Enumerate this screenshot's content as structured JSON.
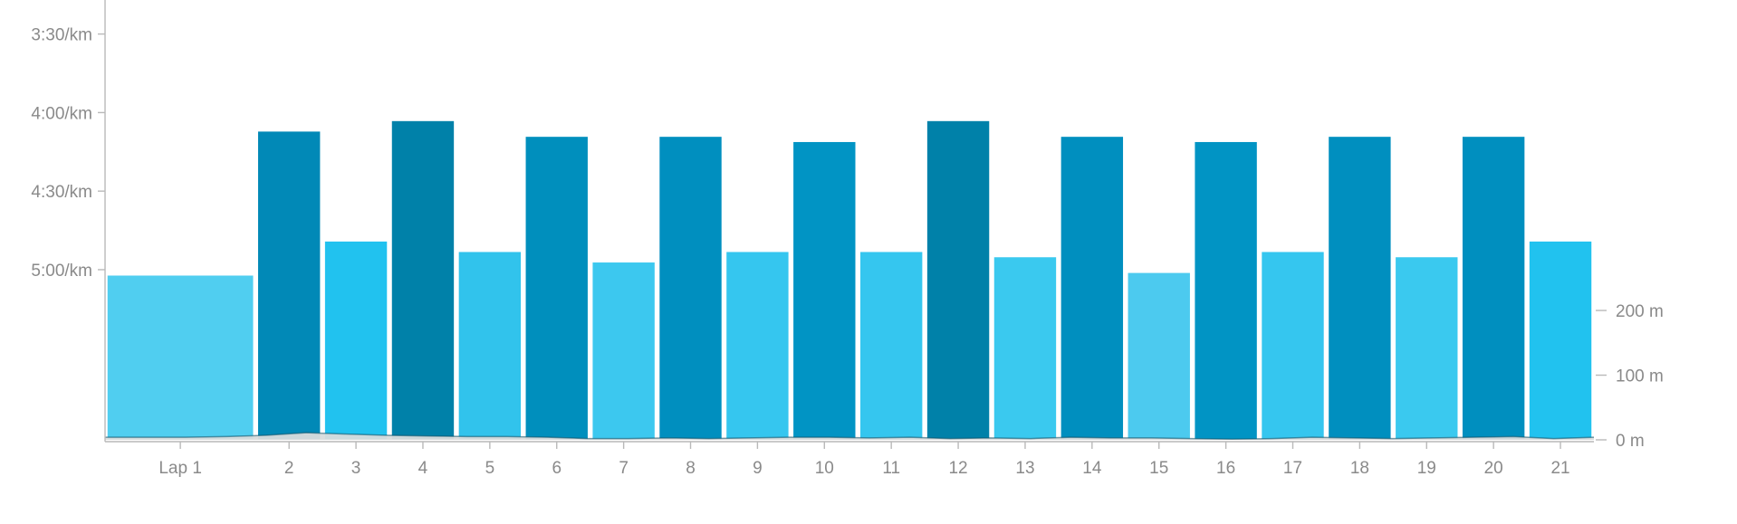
{
  "chart_data": {
    "type": "bar",
    "title": "",
    "xlabel": "",
    "ylabel": "",
    "pace_axis": {
      "ticks": [
        "3:30/km",
        "4:00/km",
        "4:30/km",
        "5:00/km"
      ],
      "tick_values_sec": [
        210,
        240,
        270,
        300
      ],
      "range_sec": [
        197,
        365
      ],
      "inverted": true
    },
    "elevation_axis": {
      "ticks": [
        "200 m",
        "100 m",
        "0 m"
      ],
      "tick_values_m": [
        200,
        100,
        0
      ],
      "range_m": [
        0,
        680
      ]
    },
    "categories": [
      "Lap 1",
      "2",
      "3",
      "4",
      "5",
      "6",
      "7",
      "8",
      "9",
      "10",
      "11",
      "12",
      "13",
      "14",
      "15",
      "16",
      "17",
      "18",
      "19",
      "20",
      "21"
    ],
    "lap_distance_rel": [
      2.25,
      1,
      1,
      1,
      1,
      1,
      1,
      1,
      1,
      1,
      1,
      1,
      1,
      1,
      1,
      1,
      1,
      1,
      1,
      1,
      1
    ],
    "pace_sec_per_km": [
      302,
      247,
      289,
      243,
      293,
      249,
      297,
      249,
      293,
      251,
      293,
      243,
      295,
      249,
      301,
      251,
      293,
      249,
      295,
      249,
      289
    ],
    "pace_labels": [
      "5:02/km",
      "4:07/km",
      "4:49/km",
      "4:03/km",
      "4:53/km",
      "4:09/km",
      "4:57/km",
      "4:09/km",
      "4:53/km",
      "4:11/km",
      "4:53/km",
      "4:03/km",
      "4:55/km",
      "4:09/km",
      "5:01/km",
      "4:11/km",
      "4:53/km",
      "4:09/km",
      "4:55/km",
      "4:09/km",
      "4:49/km"
    ],
    "bar_colors": [
      "#50cef0",
      "#0189b7",
      "#21c2ef",
      "#0081a9",
      "#31c3ec",
      "#008fbd",
      "#3cc8ef",
      "#008fbf",
      "#35c6ef",
      "#0194c4",
      "#35c6ef",
      "#0081a9",
      "#3ac9ef",
      "#008fbf",
      "#4ccaef",
      "#0194c4",
      "#35c6ef",
      "#008fbf",
      "#3ac9ef",
      "#008fbf",
      "#21c2ef"
    ],
    "elevation_profile_m": [
      4,
      4,
      4,
      5,
      7,
      11,
      9,
      7,
      6,
      5,
      5,
      4,
      2,
      2,
      3,
      2,
      3,
      4,
      4,
      3,
      4,
      2,
      3,
      2,
      4,
      3,
      3,
      2,
      1,
      2,
      4,
      3,
      2,
      3,
      4,
      5,
      2,
      4
    ],
    "grid": false,
    "legend": "none"
  }
}
